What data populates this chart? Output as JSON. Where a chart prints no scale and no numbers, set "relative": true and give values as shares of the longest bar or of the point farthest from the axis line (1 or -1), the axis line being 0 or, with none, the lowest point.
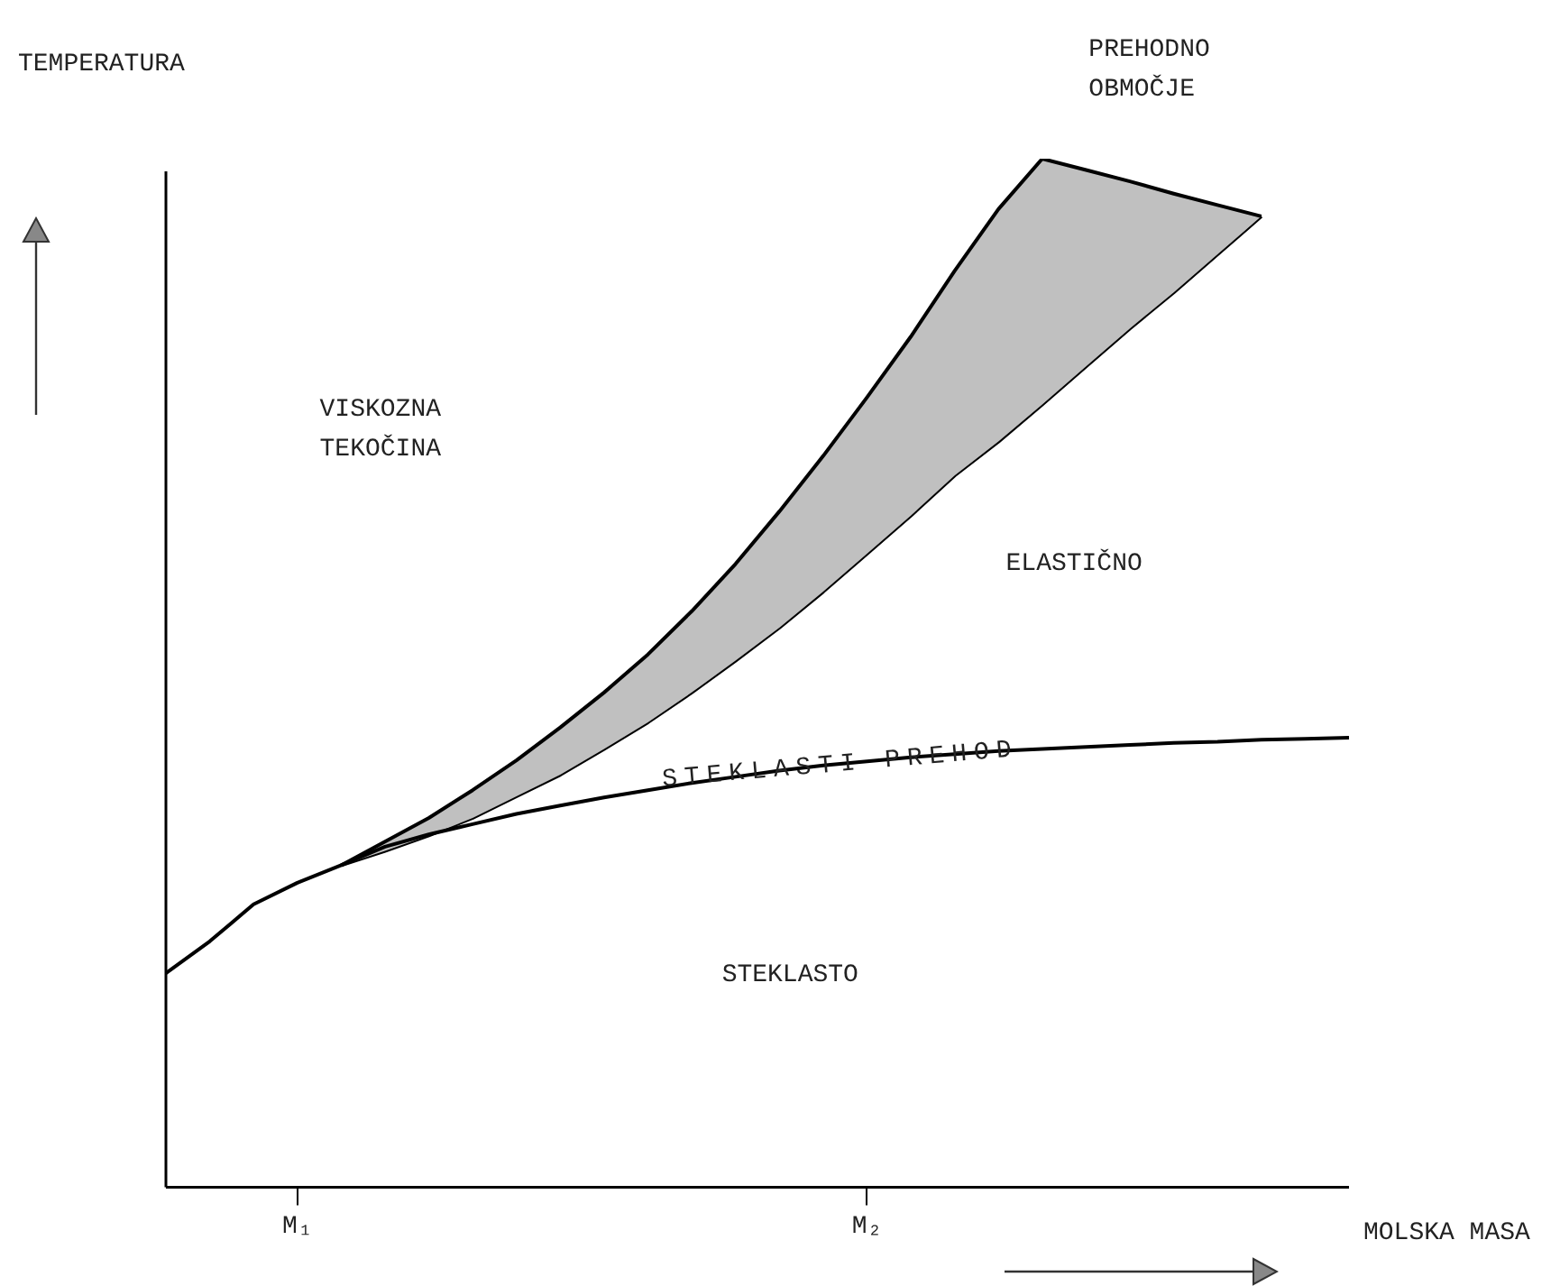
{
  "chart_data": {
    "type": "line",
    "relative": true,
    "xlabel": "MOLSKA MASA",
    "ylabel": "TEMPERATURA",
    "marker": "none",
    "legend": false,
    "grid": false,
    "categories": [
      null,
      null,
      null,
      "M₁",
      null,
      null,
      null,
      null,
      null,
      null,
      null,
      null,
      null,
      null,
      null,
      null,
      "M₂",
      null,
      null,
      null,
      null,
      null,
      null,
      null,
      null,
      null,
      null,
      null
    ],
    "series": [
      {
        "color": "#000000",
        "values": [
          0.208,
          0.239,
          0.275,
          0.296,
          0.313,
          0.331,
          0.343,
          0.353,
          0.363,
          0.371,
          0.379,
          0.386,
          0.393,
          0.399,
          0.405,
          0.41,
          0.414,
          0.418,
          0.421,
          0.424,
          0.426,
          0.428,
          0.43,
          0.432,
          0.433,
          0.435,
          0.436,
          0.437
        ]
      },
      {
        "type": "area",
        "color": "#000000",
        "values": [
          null,
          null,
          null,
          null,
          0.313,
          0.336,
          0.359,
          0.386,
          0.415,
          0.447,
          0.481,
          0.518,
          0.56,
          0.606,
          0.657,
          0.711,
          0.768,
          0.827,
          0.891,
          0.951,
          1,
          0.989,
          0.978,
          0.966,
          0.955,
          0.944,
          null,
          null
        ]
      },
      {
        "color": "#000000",
        "values": [
          null,
          null,
          null,
          null,
          0.313,
          0.327,
          0.342,
          0.359,
          0.38,
          0.401,
          0.426,
          0.452,
          0.481,
          0.512,
          0.544,
          0.579,
          0.616,
          0.653,
          0.692,
          0.725,
          0.761,
          0.798,
          0.835,
          0.87,
          0.907,
          0.944,
          null,
          null
        ]
      }
    ],
    "annotations": [
      "VISKOZNA\nTEKOČINA",
      "ELASTIČNO",
      "STEKLASTO",
      "STEKLASTI PREHOD",
      "PREHODNO\nOBMOČJE"
    ]
  }
}
